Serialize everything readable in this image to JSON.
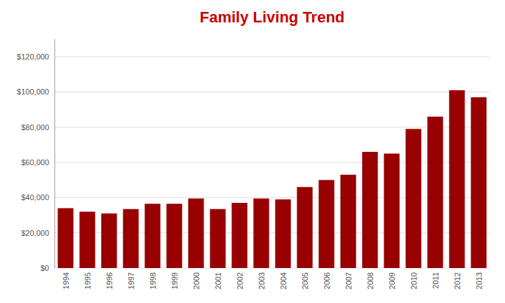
{
  "chart_data": {
    "type": "bar",
    "title": "Family Living Trend",
    "categories": [
      "1994",
      "1995",
      "1996",
      "1997",
      "1998",
      "1999",
      "2000",
      "2001",
      "2002",
      "2003",
      "2004",
      "2005",
      "2006",
      "2007",
      "2008",
      "2009",
      "2010",
      "2011",
      "2012",
      "2013"
    ],
    "values": [
      34000,
      32000,
      31000,
      33500,
      36500,
      36500,
      39500,
      33500,
      37000,
      39500,
      39000,
      46000,
      50000,
      53000,
      66000,
      65000,
      79000,
      86000,
      101000,
      97000
    ],
    "color": "#990000",
    "ylim": [
      0,
      130000
    ],
    "yticks": [
      {
        "value": 0,
        "label": "$0"
      },
      {
        "value": 20000,
        "label": "$20,000"
      },
      {
        "value": 40000,
        "label": "$40,000"
      },
      {
        "value": 60000,
        "label": "$60,000"
      },
      {
        "value": 80000,
        "label": "$80,000"
      },
      {
        "value": 100000,
        "label": "$100,000"
      },
      {
        "value": 120000,
        "label": "$120,000"
      }
    ],
    "grid": true
  }
}
